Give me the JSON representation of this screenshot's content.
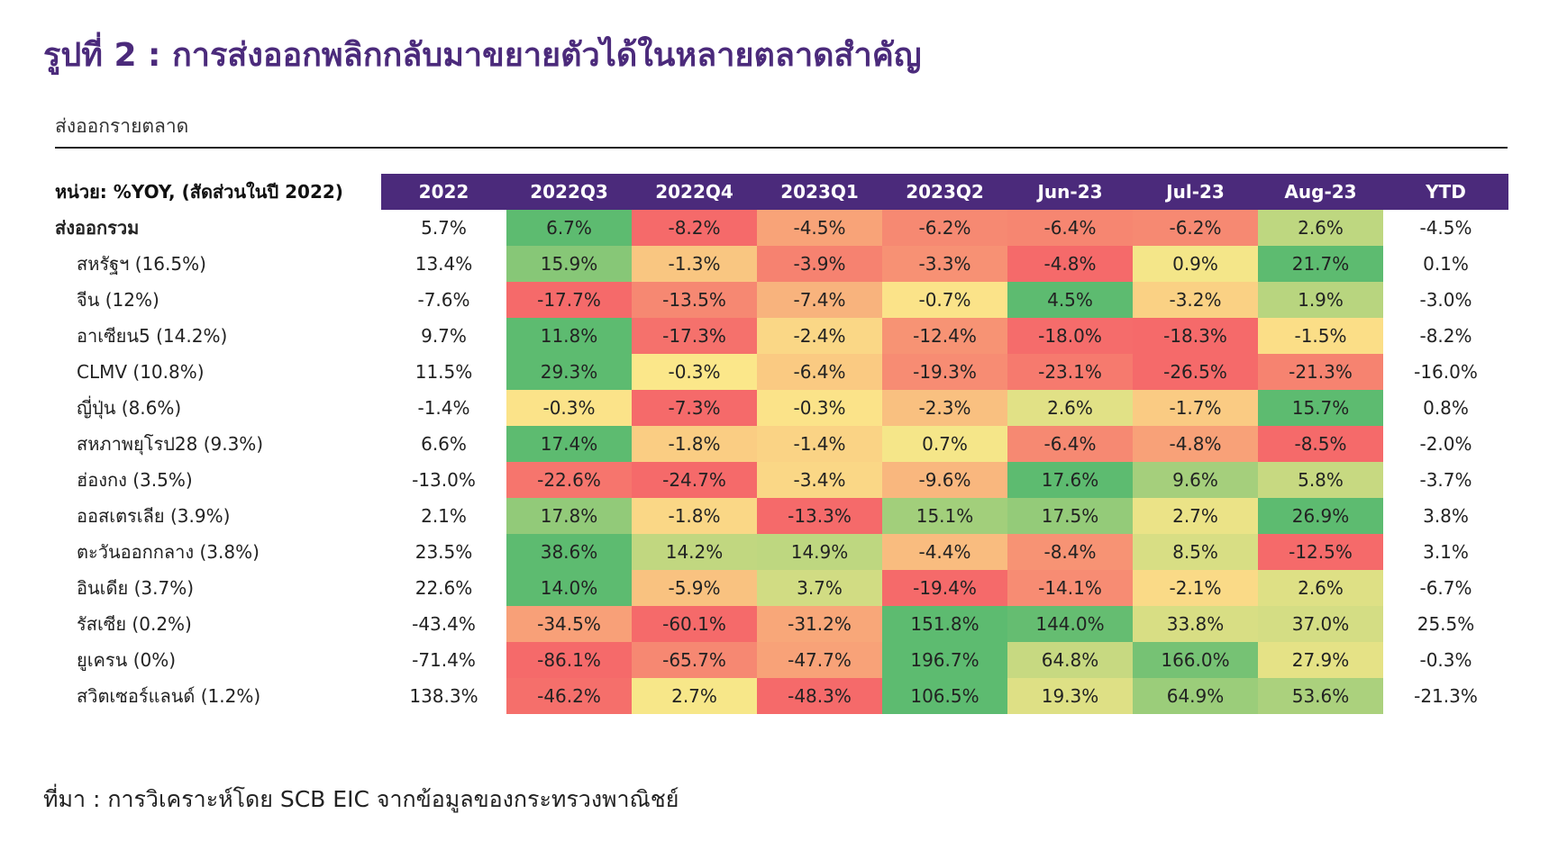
{
  "figure_title": "รูปที่ 2 : การส่งออกพลิกกลับมาขยายตัวได้ในหลายตลาดสำคัญ",
  "subtitle": "ส่งออกรายตลาด",
  "unit_label": "หน่วย: %YOY, (สัดส่วนในปี 2022)",
  "source": "ที่มา : การวิเคราะห์โดย SCB EIC จากข้อมูลของกระทรวงพาณิชย์",
  "colors": {
    "header_bg": "#4b2a7b",
    "scale_low": "#f56a6a",
    "scale_mid": "#fbe88a",
    "scale_high": "#5dbb70"
  },
  "chart_data": {
    "type": "table",
    "title": "รูปที่ 2 : การส่งออกพลิกกลับมาขยายตัวได้ในหลายตลาดสำคัญ",
    "columns": [
      "2022",
      "2022Q3",
      "2022Q4",
      "2023Q1",
      "2023Q2",
      "Jun-23",
      "Jul-23",
      "Aug-23",
      "YTD"
    ],
    "colored_columns": [
      "2022Q3",
      "2022Q4",
      "2023Q1",
      "2023Q2",
      "Jun-23",
      "Jul-23",
      "Aug-23"
    ],
    "rows": [
      {
        "label": "ส่งออกรวม",
        "total": true,
        "values": [
          "5.7%",
          "6.7%",
          "-8.2%",
          "-4.5%",
          "-6.2%",
          "-6.4%",
          "-6.2%",
          "2.6%",
          "-4.5%"
        ]
      },
      {
        "label": "สหรัฐฯ (16.5%)",
        "values": [
          "13.4%",
          "15.9%",
          "-1.3%",
          "-3.9%",
          "-3.3%",
          "-4.8%",
          "0.9%",
          "21.7%",
          "0.1%"
        ]
      },
      {
        "label": "จีน (12%)",
        "values": [
          "-7.6%",
          "-17.7%",
          "-13.5%",
          "-7.4%",
          "-0.7%",
          "4.5%",
          "-3.2%",
          "1.9%",
          "-3.0%"
        ]
      },
      {
        "label": "อาเซียน5 (14.2%)",
        "values": [
          "9.7%",
          "11.8%",
          "-17.3%",
          "-2.4%",
          "-12.4%",
          "-18.0%",
          "-18.3%",
          "-1.5%",
          "-8.2%"
        ]
      },
      {
        "label": "CLMV (10.8%)",
        "values": [
          "11.5%",
          "29.3%",
          "-0.3%",
          "-6.4%",
          "-19.3%",
          "-23.1%",
          "-26.5%",
          "-21.3%",
          "-16.0%"
        ]
      },
      {
        "label": "ญี่ปุ่น (8.6%)",
        "values": [
          "-1.4%",
          "-0.3%",
          "-7.3%",
          "-0.3%",
          "-2.3%",
          "2.6%",
          "-1.7%",
          "15.7%",
          "0.8%"
        ]
      },
      {
        "label": "สหภาพยุโรป28 (9.3%)",
        "values": [
          "6.6%",
          "17.4%",
          "-1.8%",
          "-1.4%",
          "0.7%",
          "-6.4%",
          "-4.8%",
          "-8.5%",
          "-2.0%"
        ]
      },
      {
        "label": "ฮ่องกง (3.5%)",
        "values": [
          "-13.0%",
          "-22.6%",
          "-24.7%",
          "-3.4%",
          "-9.6%",
          "17.6%",
          "9.6%",
          "5.8%",
          "-3.7%"
        ]
      },
      {
        "label": "ออสเตรเลีย (3.9%)",
        "values": [
          "2.1%",
          "17.8%",
          "-1.8%",
          "-13.3%",
          "15.1%",
          "17.5%",
          "2.7%",
          "26.9%",
          "3.8%"
        ]
      },
      {
        "label": "ตะวันออกกลาง (3.8%)",
        "values": [
          "23.5%",
          "38.6%",
          "14.2%",
          "14.9%",
          "-4.4%",
          "-8.4%",
          "8.5%",
          "-12.5%",
          "3.1%"
        ]
      },
      {
        "label": "อินเดีย (3.7%)",
        "values": [
          "22.6%",
          "14.0%",
          "-5.9%",
          "3.7%",
          "-19.4%",
          "-14.1%",
          "-2.1%",
          "2.6%",
          "-6.7%"
        ]
      },
      {
        "label": "รัสเซีย (0.2%)",
        "values": [
          "-43.4%",
          "-34.5%",
          "-60.1%",
          "-31.2%",
          "151.8%",
          "144.0%",
          "33.8%",
          "37.0%",
          "25.5%"
        ]
      },
      {
        "label": "ยูเครน (0%)",
        "values": [
          "-71.4%",
          "-86.1%",
          "-65.7%",
          "-47.7%",
          "196.7%",
          "64.8%",
          "166.0%",
          "27.9%",
          "-0.3%"
        ]
      },
      {
        "label": "สวิตเซอร์แลนด์ (1.2%)",
        "values": [
          "138.3%",
          "-46.2%",
          "2.7%",
          "-48.3%",
          "106.5%",
          "19.3%",
          "64.9%",
          "53.6%",
          "-21.3%"
        ]
      }
    ]
  }
}
